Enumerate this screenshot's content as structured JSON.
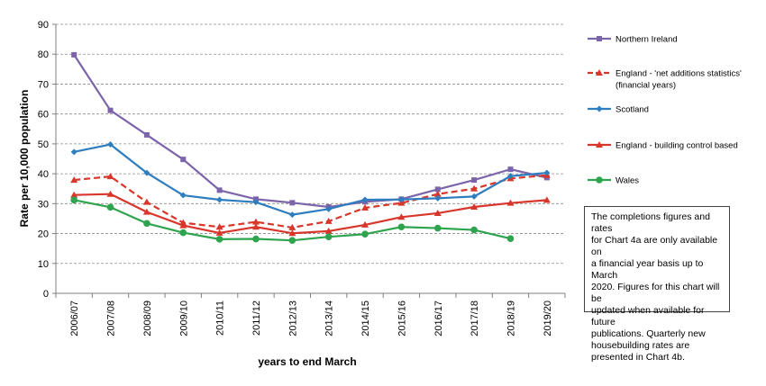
{
  "chart_data": {
    "type": "line",
    "xlabel": "years to end March",
    "ylabel": "Rate per 10,000 population",
    "ylim": [
      0,
      90
    ],
    "yticks": [
      0,
      10,
      20,
      30,
      40,
      50,
      60,
      70,
      80,
      90
    ],
    "grid": "horizontal dashed",
    "legend_position": "right",
    "categories": [
      "2006/07",
      "2007/08",
      "2008/09",
      "2009/10",
      "2010/11",
      "2011/12",
      "2012/13",
      "2013/14",
      "2014/15",
      "2015/16",
      "2016/17",
      "2017/18",
      "2018/19",
      "2019/20"
    ],
    "series": [
      {
        "name": "Northern Ireland",
        "legend_lines": [
          "Northern Ireland"
        ],
        "color": "#7B64AA",
        "marker": "square",
        "dash": false,
        "values": [
          79.8,
          61.2,
          53,
          44.8,
          34.5,
          31.5,
          30.3,
          28.9,
          30.6,
          31.5,
          34.8,
          37.9,
          41.5,
          38.7
        ]
      },
      {
        "name": "England - 'net additions statistics' (financial years)",
        "legend_lines": [
          "England -  'net additions statistics'",
          "(financial years)"
        ],
        "color": "#D9362B",
        "marker": "triangle",
        "dash": true,
        "values": [
          37.9,
          39.1,
          30.5,
          23.6,
          22.2,
          23.9,
          22,
          24.1,
          28.6,
          30.2,
          33.2,
          35,
          38.4,
          39.5
        ]
      },
      {
        "name": "Scotland",
        "legend_lines": [
          "Scotland"
        ],
        "color": "#2E7DBF",
        "marker": "diamond",
        "dash": false,
        "values": [
          47.3,
          49.8,
          40.3,
          32.8,
          31.3,
          30.5,
          26.3,
          28.2,
          31.3,
          31.4,
          31.8,
          32.4,
          39.2,
          40.3
        ]
      },
      {
        "name": "England - building control based",
        "legend_lines": [
          "England - building control based"
        ],
        "color": "#D9362B",
        "marker": "triangle",
        "dash": false,
        "values": [
          32.9,
          33.2,
          27.2,
          22.7,
          20.2,
          22.2,
          20.1,
          20.8,
          22.9,
          25.5,
          26.8,
          28.9,
          30.2,
          31.2
        ]
      },
      {
        "name": "Wales",
        "legend_lines": [
          "Wales"
        ],
        "color": "#2EA44F",
        "marker": "circle",
        "dash": false,
        "values": [
          31.2,
          28.8,
          23.4,
          20.3,
          18.1,
          18.2,
          17.7,
          18.9,
          19.8,
          22.2,
          21.8,
          21.2,
          18.3,
          null
        ]
      }
    ]
  },
  "note": {
    "lines": [
      "The completions figures and rates",
      "for Chart 4a are only available on",
      "a financial year basis up to March",
      "2020. Figures for this chart will be",
      "updated when available for future",
      "publications. Quarterly new",
      "housebuilding rates are",
      "presented in Chart 4b."
    ]
  }
}
